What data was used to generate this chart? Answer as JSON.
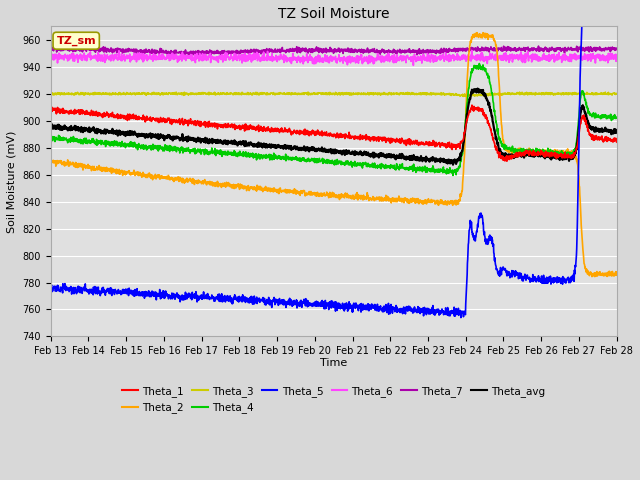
{
  "title": "TZ Soil Moisture",
  "xlabel": "Time",
  "ylabel": "Soil Moisture (mV)",
  "ylim": [
    740,
    970
  ],
  "yticks": [
    740,
    760,
    780,
    800,
    820,
    840,
    860,
    880,
    900,
    920,
    940,
    960
  ],
  "bg_color": "#d8d8d8",
  "plot_bg_color": "#e0e0e0",
  "grid_color": "#ffffff",
  "label_box_facecolor": "#ffffcc",
  "label_box_edgecolor": "#999900",
  "label_text": "TZ_sm",
  "label_text_color": "#cc0000",
  "c1": "#ff0000",
  "c2": "#ffa500",
  "c3": "#cccc00",
  "c4": "#00cc00",
  "c5": "#0000ff",
  "c6": "#ff44ff",
  "c7": "#aa00aa",
  "cavg": "#000000",
  "lw": 1.2
}
